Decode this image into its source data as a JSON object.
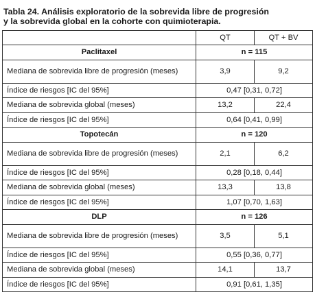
{
  "caption": {
    "line1": "Tabla 24. Análisis exploratorio de la sobrevida libre de progresión",
    "line2": "y la sobrevida global en la cohorte con quimioterapia."
  },
  "header": {
    "col1": "",
    "col2": "QT",
    "col3": "QT + BV"
  },
  "groups": [
    {
      "name": "Paclitaxel",
      "n": "n = 115",
      "rows": [
        {
          "label": "Mediana de sobrevida libre de progresión (meses)",
          "qt": "3,9",
          "qtbv": "9,2"
        },
        {
          "label": "Índice de riesgos [IC del 95%]",
          "combined": "0,47 [0,31, 0,72]"
        },
        {
          "label": "Mediana de sobrevida global (meses)",
          "qt": "13,2",
          "qtbv": "22,4"
        },
        {
          "label": "Índice de riesgos [IC del 95%]",
          "combined": "0,64 [0,41, 0,99]"
        }
      ]
    },
    {
      "name": "Topotecán",
      "n": "n = 120",
      "rows": [
        {
          "label": "Mediana de sobrevida libre de progresión (meses)",
          "qt": "2,1",
          "qtbv": "6,2"
        },
        {
          "label": "Índice de riesgos [IC del 95%]",
          "combined": "0,28 [0,18, 0,44]"
        },
        {
          "label": "Mediana de sobrevida global (meses)",
          "qt": "13,3",
          "qtbv": "13,8"
        },
        {
          "label": "Índice de riesgos [IC del 95%]",
          "combined": "1,07 [0,70, 1,63]"
        }
      ]
    },
    {
      "name": "DLP",
      "n": "n = 126",
      "rows": [
        {
          "label": "Mediana de sobrevida libre de progresión (meses)",
          "qt": "3,5",
          "qtbv": "5,1"
        },
        {
          "label": "Índice de riesgos [IC del 95%]",
          "combined": "0,55 [0,36, 0,77]"
        },
        {
          "label": "Mediana de sobrevida global (meses)",
          "qt": "14,1",
          "qtbv": "13,7"
        },
        {
          "label": "Índice de riesgos [IC del 95%]",
          "combined": "0,91 [0,61, 1,35]"
        }
      ]
    }
  ]
}
